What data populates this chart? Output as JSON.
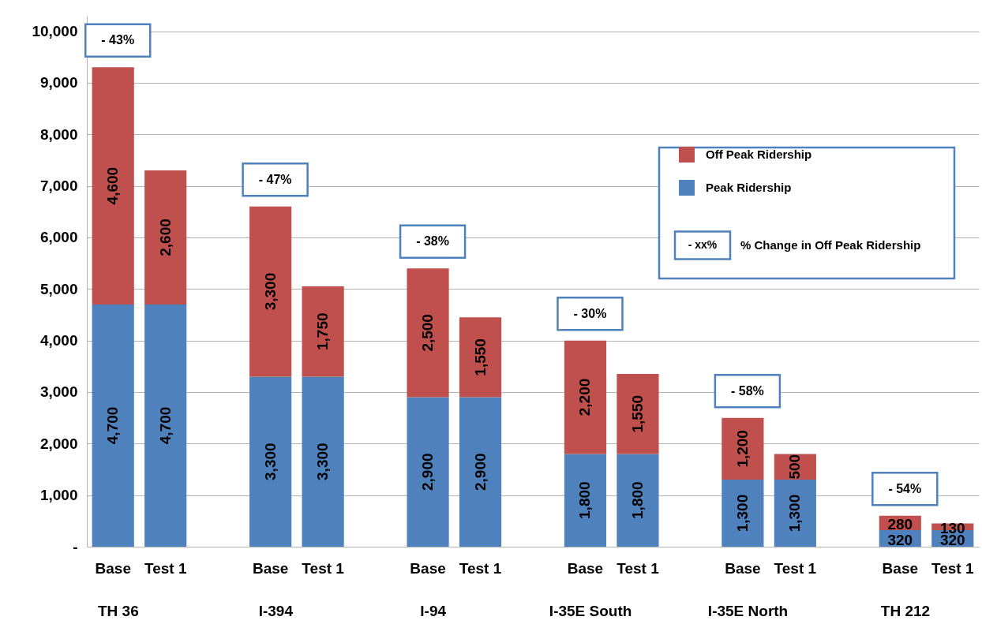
{
  "chart_data": {
    "type": "bar",
    "stacked": true,
    "grid": "y",
    "legend": "top right",
    "categories": [
      "Base",
      "Test 1",
      null,
      "Base",
      "Test 1",
      null,
      "Base",
      "Test 1",
      null,
      "Base",
      "Test 1",
      null,
      "Base",
      "Test 1",
      null,
      "Base",
      "Test 1"
    ],
    "series": [
      {
        "name": "Peak Ridership",
        "color": "#4f81bd",
        "values": [
          4700,
          4700,
          null,
          3300,
          3300,
          null,
          2900,
          2900,
          null,
          1800,
          1800,
          null,
          1300,
          1300,
          null,
          320,
          320
        ],
        "value_labels": [
          "4,700",
          "4,700",
          null,
          "3,300",
          "3,300",
          null,
          "2,900",
          "2,900",
          null,
          "1,800",
          "1,800",
          null,
          "1,300",
          "1,300",
          null,
          "320",
          "320"
        ]
      },
      {
        "name": "Off Peak Ridership",
        "color": "#c0504d",
        "values": [
          4600,
          2600,
          null,
          3300,
          1750,
          null,
          2500,
          1550,
          null,
          2200,
          1550,
          null,
          1200,
          500,
          null,
          280,
          130
        ],
        "value_labels": [
          "4,600",
          "2,600",
          null,
          "3,300",
          "1,750",
          null,
          "2,500",
          "1,550",
          null,
          "2,200",
          "1,550",
          null,
          "1,200",
          "500",
          null,
          "280",
          "130"
        ]
      }
    ],
    "ylim": [
      0,
      10300
    ],
    "yticks": [
      {
        "value": 0,
        "label": "-"
      },
      {
        "value": 1000,
        "label": "1,000"
      },
      {
        "value": 2000,
        "label": "2,000"
      },
      {
        "value": 3000,
        "label": "3,000"
      },
      {
        "value": 4000,
        "label": "4,000"
      },
      {
        "value": 5000,
        "label": "5,000"
      },
      {
        "value": 6000,
        "label": "6,000"
      },
      {
        "value": 7000,
        "label": "7,000"
      },
      {
        "value": 8000,
        "label": "8,000"
      },
      {
        "value": 9000,
        "label": "9,000"
      },
      {
        "value": 10000,
        "label": "10,000"
      }
    ],
    "annotations": [
      "TH 36",
      "I-394",
      "I-94",
      "I-35E South",
      "I-35E North",
      "TH 212",
      "- 43%",
      "- 47%",
      "- 38%",
      "- 30%",
      "- 58%",
      "- 54%",
      "- xx%",
      "% Change in Off Peak Ridership"
    ]
  }
}
